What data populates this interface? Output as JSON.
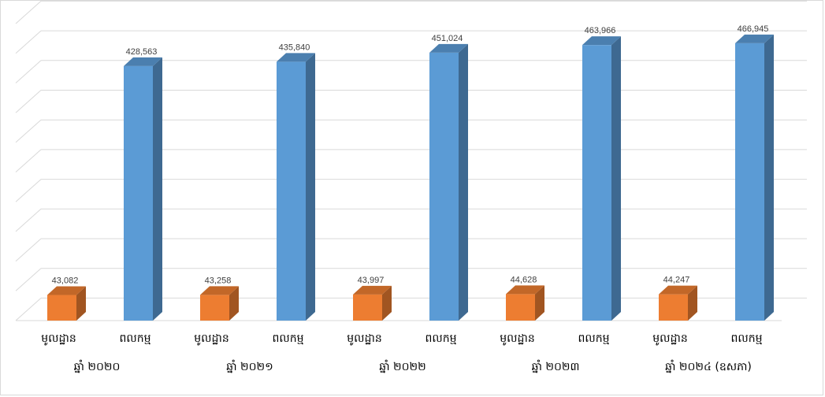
{
  "chart_data": {
    "type": "bar",
    "title": "",
    "xlabel": "",
    "ylabel": "",
    "ylim": [
      0,
      500000
    ],
    "grid": true,
    "legend": "none",
    "groups": [
      {
        "label": "ឆ្នាំ ២០២០",
        "bars": [
          {
            "category": "មូលដ្ឋាន",
            "value": 43082,
            "label": "43,082",
            "color": "#ED7D31"
          },
          {
            "category": "ពលកម្ម",
            "value": 428563,
            "label": "428,563",
            "color": "#5B9BD5"
          }
        ]
      },
      {
        "label": "ឆ្នាំ ២០២១",
        "bars": [
          {
            "category": "មូលដ្ឋាន",
            "value": 43258,
            "label": "43,258",
            "color": "#ED7D31"
          },
          {
            "category": "ពលកម្ម",
            "value": 435840,
            "label": "435,840",
            "color": "#5B9BD5"
          }
        ]
      },
      {
        "label": "ឆ្នាំ ២០២២",
        "bars": [
          {
            "category": "មូលដ្ឋាន",
            "value": 43997,
            "label": "43,997",
            "color": "#ED7D31"
          },
          {
            "category": "ពលកម្ម",
            "value": 451024,
            "label": "451,024",
            "color": "#5B9BD5"
          }
        ]
      },
      {
        "label": "ឆ្នាំ ២០២៣",
        "bars": [
          {
            "category": "មូលដ្ឋាន",
            "value": 44628,
            "label": "44,628",
            "color": "#ED7D31"
          },
          {
            "category": "ពលកម្ម",
            "value": 463966,
            "label": "463,966",
            "color": "#5B9BD5"
          }
        ]
      },
      {
        "label": "ឆ្នាំ ២០២៤ (ឧសភា)",
        "bars": [
          {
            "category": "មូលដ្ឋាន",
            "value": 44247,
            "label": "44,247",
            "color": "#ED7D31"
          },
          {
            "category": "ពលកម្ម",
            "value": 466945,
            "label": "466,945",
            "color": "#5B9BD5"
          }
        ]
      }
    ]
  }
}
